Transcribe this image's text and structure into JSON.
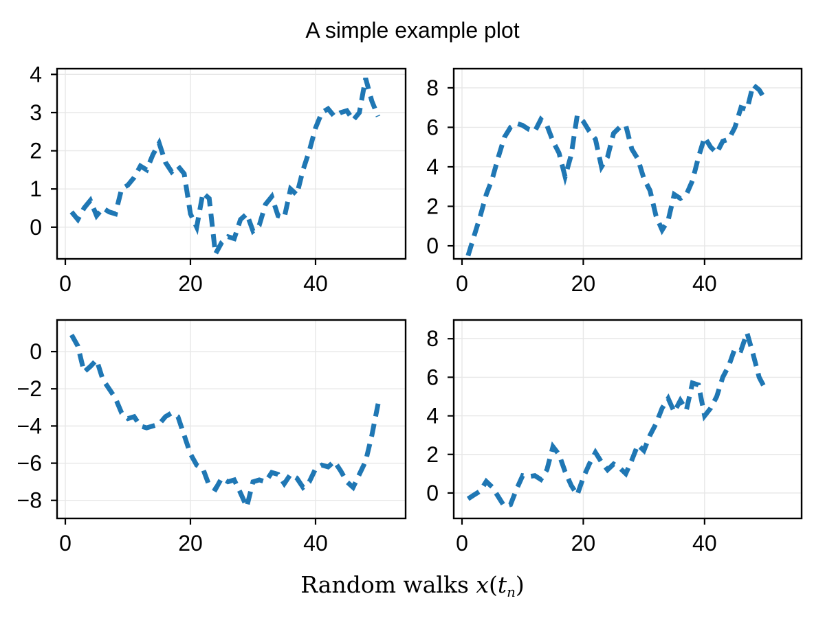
{
  "figure": {
    "suptitle": "A simple example plot",
    "xlabel_prefix": "Random walks ",
    "xlabel_x": "x",
    "xlabel_open_paren": "(",
    "xlabel_t": "t",
    "xlabel_sub": "n",
    "xlabel_close_paren": ")"
  },
  "colors": {
    "line": "#1f77b4",
    "grid": "#e7e7e7",
    "spine": "#000000",
    "tick": "#000000",
    "background": "#ffffff"
  },
  "chart_data": [
    {
      "id": "random-walk-top-left",
      "type": "line",
      "linestyle": "dashed",
      "grid": true,
      "legend": "none",
      "xticks": [
        0,
        20,
        40
      ],
      "yticks": [
        0,
        1,
        2,
        3,
        4
      ],
      "xlim": [
        -1.32,
        54.4
      ],
      "ylim": [
        -0.83,
        4.15
      ],
      "x": [
        1,
        2,
        3,
        4,
        5,
        6,
        7,
        8,
        9,
        10,
        11,
        12,
        13,
        14,
        15,
        16,
        17,
        18,
        19,
        20,
        21,
        22,
        23,
        24,
        25,
        26,
        27,
        28,
        29,
        30,
        31,
        32,
        33,
        34,
        35,
        36,
        37,
        38,
        39,
        40,
        41,
        42,
        43,
        44,
        45,
        46,
        47,
        48,
        49,
        50
      ],
      "y": [
        0.4,
        0.2,
        0.5,
        0.7,
        0.3,
        0.5,
        0.4,
        0.35,
        1.0,
        1.1,
        1.3,
        1.6,
        1.5,
        1.9,
        2.2,
        1.7,
        1.45,
        1.6,
        1.4,
        0.35,
        0.0,
        0.9,
        0.75,
        -0.7,
        -0.4,
        -0.25,
        -0.3,
        0.2,
        0.35,
        -0.1,
        0.05,
        0.6,
        0.8,
        0.3,
        0.25,
        1.0,
        0.85,
        1.5,
        2.0,
        2.6,
        3.0,
        3.1,
        2.9,
        3.0,
        3.05,
        2.8,
        3.0,
        3.9,
        3.3,
        2.9
      ]
    },
    {
      "id": "random-walk-top-right",
      "type": "line",
      "linestyle": "dashed",
      "grid": true,
      "legend": "none",
      "xticks": [
        0,
        20,
        40
      ],
      "yticks": [
        0,
        2,
        4,
        6,
        8
      ],
      "xlim": [
        -1.36,
        56.0
      ],
      "ylim": [
        -0.66,
        8.97
      ],
      "x": [
        1,
        2,
        3,
        4,
        5,
        6,
        7,
        8,
        9,
        10,
        11,
        12,
        13,
        14,
        15,
        16,
        17,
        18,
        19,
        20,
        21,
        22,
        23,
        24,
        25,
        26,
        27,
        28,
        29,
        30,
        31,
        32,
        33,
        34,
        35,
        36,
        37,
        38,
        39,
        40,
        41,
        42,
        43,
        44,
        45,
        46,
        47,
        48,
        49,
        50
      ],
      "y": [
        -0.5,
        0.5,
        1.5,
        2.6,
        3.4,
        4.5,
        5.5,
        6.0,
        6.2,
        6.1,
        5.9,
        5.8,
        6.4,
        6.1,
        5.3,
        4.7,
        3.5,
        4.6,
        6.6,
        6.3,
        5.8,
        5.4,
        4.0,
        4.5,
        5.7,
        6.0,
        6.1,
        4.9,
        4.4,
        3.4,
        2.8,
        1.5,
        0.8,
        1.3,
        2.6,
        2.4,
        2.6,
        3.3,
        4.5,
        5.5,
        5.0,
        4.7,
        5.3,
        5.4,
        6.0,
        7.0,
        6.9,
        8.15,
        7.9,
        7.4
      ]
    },
    {
      "id": "random-walk-bottom-left",
      "type": "line",
      "linestyle": "dashed",
      "grid": true,
      "legend": "none",
      "xticks": [
        0,
        20,
        40
      ],
      "yticks": [
        0,
        -2,
        -4,
        -6,
        -8
      ],
      "xlim": [
        -1.32,
        54.4
      ],
      "ylim": [
        -8.97,
        1.7
      ],
      "x": [
        1,
        2,
        3,
        4,
        5,
        6,
        7,
        8,
        9,
        10,
        11,
        12,
        13,
        14,
        15,
        16,
        17,
        18,
        19,
        20,
        21,
        22,
        23,
        24,
        25,
        26,
        27,
        28,
        29,
        30,
        31,
        32,
        33,
        34,
        35,
        36,
        37,
        38,
        39,
        40,
        41,
        42,
        43,
        44,
        45,
        46,
        47,
        48,
        49,
        50
      ],
      "y": [
        0.9,
        0.3,
        -1.1,
        -0.8,
        -0.45,
        -1.5,
        -2.0,
        -2.5,
        -3.3,
        -3.6,
        -3.5,
        -4.0,
        -4.1,
        -4.0,
        -3.9,
        -3.5,
        -3.3,
        -3.5,
        -4.5,
        -5.5,
        -6.1,
        -6.3,
        -7.2,
        -7.4,
        -6.8,
        -7.0,
        -6.9,
        -7.6,
        -8.35,
        -7.0,
        -6.9,
        -7.0,
        -6.5,
        -6.6,
        -7.1,
        -6.6,
        -6.8,
        -7.3,
        -7.0,
        -6.3,
        -6.1,
        -6.2,
        -5.9,
        -6.4,
        -7.0,
        -7.3,
        -6.6,
        -5.9,
        -4.5,
        -2.8
      ]
    },
    {
      "id": "random-walk-bottom-right",
      "type": "line",
      "linestyle": "dashed",
      "grid": true,
      "legend": "none",
      "xticks": [
        0,
        20,
        40
      ],
      "yticks": [
        0,
        2,
        4,
        6,
        8
      ],
      "xlim": [
        -1.36,
        56.0
      ],
      "ylim": [
        -1.32,
        8.97
      ],
      "x": [
        1,
        2,
        3,
        4,
        5,
        6,
        7,
        8,
        9,
        10,
        11,
        12,
        13,
        14,
        15,
        16,
        17,
        18,
        19,
        20,
        21,
        22,
        23,
        24,
        25,
        26,
        27,
        28,
        29,
        30,
        31,
        32,
        33,
        34,
        35,
        36,
        37,
        38,
        39,
        40,
        41,
        42,
        43,
        44,
        45,
        46,
        47,
        48,
        49,
        50
      ],
      "y": [
        -0.3,
        -0.1,
        0.1,
        0.6,
        0.3,
        -0.2,
        -0.7,
        -0.6,
        0.2,
        0.9,
        0.85,
        0.9,
        0.7,
        1.2,
        2.4,
        2.0,
        1.1,
        0.4,
        -0.1,
        0.8,
        1.5,
        2.1,
        1.6,
        1.2,
        1.5,
        1.3,
        1.0,
        1.7,
        2.5,
        2.2,
        3.0,
        3.6,
        4.4,
        4.9,
        4.2,
        4.8,
        4.3,
        5.7,
        5.6,
        4.0,
        4.4,
        5.0,
        6.0,
        6.6,
        7.5,
        7.4,
        8.3,
        7.2,
        6.0,
        5.4
      ]
    }
  ]
}
